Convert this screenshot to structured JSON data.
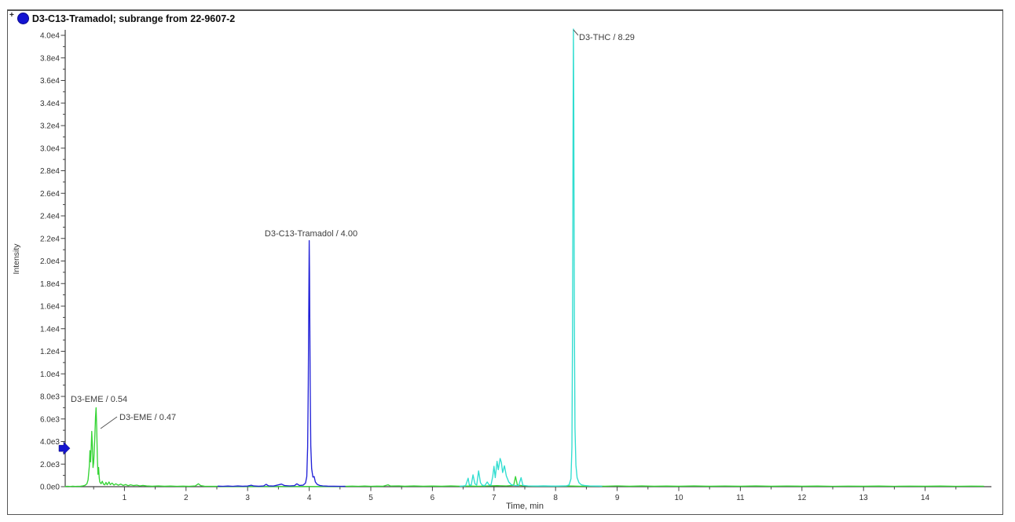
{
  "window": {
    "title_prefix": "+",
    "title": "D3-C13-Tramadol; subrange from 22-9607-2"
  },
  "axes": {
    "x_label": "Time, min",
    "y_label": "Intensity",
    "x_major_ticks": [
      "1",
      "2",
      "3",
      "4",
      "5",
      "6",
      "7",
      "8",
      "9",
      "10",
      "11",
      "12",
      "13",
      "14"
    ],
    "y_major_ticks": [
      "0.0e0",
      "2.0e3",
      "4.0e3",
      "6.0e3",
      "8.0e3",
      "1.0e4",
      "1.2e4",
      "1.4e4",
      "1.6e4",
      "1.8e4",
      "2.0e4",
      "2.2e4",
      "2.4e4",
      "2.6e4",
      "2.8e4",
      "3.0e4",
      "3.2e4",
      "3.4e4",
      "3.6e4",
      "3.8e4",
      "4.0e4"
    ]
  },
  "marker": {
    "name": "axis-cursor-arrow",
    "intensity": 3400,
    "color": "#1616d0"
  },
  "chart_data": {
    "type": "line",
    "title": "D3-C13-Tramadol; subrange from 22-9607-2",
    "xlabel": "Time, min",
    "ylabel": "Intensity",
    "xlim": [
      0,
      15.05
    ],
    "ylim": [
      0,
      40000
    ],
    "grid": false,
    "legend_position": "none",
    "annotations": [
      {
        "text": "D3-EME / 0.54",
        "rt": 0.54,
        "apex_intensity": 7000
      },
      {
        "text": "D3-EME / 0.47",
        "rt": 0.47,
        "apex_intensity": 4900
      },
      {
        "text": "D3-C13-Tramadol / 4.00",
        "rt": 4.0,
        "apex_intensity": 21800
      },
      {
        "text": "D3-THC / 8.29",
        "rt": 8.29,
        "apex_intensity": 40550
      }
    ],
    "series": [
      {
        "name": "D3-EME",
        "color": "#35d435",
        "points": [
          [
            0.04,
            20
          ],
          [
            0.08,
            35
          ],
          [
            0.12,
            15
          ],
          [
            0.16,
            40
          ],
          [
            0.2,
            20
          ],
          [
            0.24,
            35
          ],
          [
            0.28,
            25
          ],
          [
            0.32,
            60
          ],
          [
            0.36,
            120
          ],
          [
            0.39,
            250
          ],
          [
            0.41,
            600
          ],
          [
            0.43,
            1800
          ],
          [
            0.44,
            3200
          ],
          [
            0.45,
            2200
          ],
          [
            0.46,
            3400
          ],
          [
            0.47,
            4900
          ],
          [
            0.48,
            3600
          ],
          [
            0.49,
            1700
          ],
          [
            0.5,
            2100
          ],
          [
            0.51,
            3200
          ],
          [
            0.52,
            4600
          ],
          [
            0.53,
            6200
          ],
          [
            0.54,
            7000
          ],
          [
            0.55,
            5200
          ],
          [
            0.56,
            2600
          ],
          [
            0.57,
            1100
          ],
          [
            0.58,
            1700
          ],
          [
            0.59,
            800
          ],
          [
            0.6,
            420
          ],
          [
            0.62,
            260
          ],
          [
            0.64,
            480
          ],
          [
            0.66,
            220
          ],
          [
            0.68,
            160
          ],
          [
            0.7,
            380
          ],
          [
            0.72,
            170
          ],
          [
            0.75,
            420
          ],
          [
            0.77,
            180
          ],
          [
            0.8,
            320
          ],
          [
            0.83,
            140
          ],
          [
            0.86,
            260
          ],
          [
            0.9,
            130
          ],
          [
            0.94,
            230
          ],
          [
            0.98,
            110
          ],
          [
            1.02,
            190
          ],
          [
            1.06,
            90
          ],
          [
            1.1,
            170
          ],
          [
            1.15,
            100
          ],
          [
            1.2,
            140
          ],
          [
            1.25,
            70
          ],
          [
            1.3,
            110
          ],
          [
            1.36,
            60
          ],
          [
            1.45,
            45
          ],
          [
            1.55,
            60
          ],
          [
            1.65,
            40
          ],
          [
            1.75,
            55
          ],
          [
            1.85,
            35
          ],
          [
            1.95,
            50
          ],
          [
            2.05,
            35
          ],
          [
            2.15,
            60
          ],
          [
            2.2,
            260
          ],
          [
            2.24,
            90
          ],
          [
            2.3,
            45
          ],
          [
            2.4,
            35
          ],
          [
            2.5,
            25
          ],
          [
            2.6,
            15
          ],
          [
            3.5,
            15
          ],
          [
            4.5,
            15
          ],
          [
            4.58,
            35
          ],
          [
            4.7,
            50
          ],
          [
            4.8,
            35
          ],
          [
            4.9,
            55
          ],
          [
            5.0,
            35
          ],
          [
            5.1,
            50
          ],
          [
            5.2,
            40
          ],
          [
            5.28,
            170
          ],
          [
            5.32,
            55
          ],
          [
            5.45,
            70
          ],
          [
            5.55,
            40
          ],
          [
            5.7,
            60
          ],
          [
            5.85,
            40
          ],
          [
            6.0,
            55
          ],
          [
            6.15,
            40
          ],
          [
            6.3,
            60
          ],
          [
            6.45,
            45
          ],
          [
            6.6,
            55
          ],
          [
            6.75,
            45
          ],
          [
            6.9,
            70
          ],
          [
            7.05,
            90
          ],
          [
            7.2,
            70
          ],
          [
            7.32,
            120
          ],
          [
            7.35,
            900
          ],
          [
            7.38,
            130
          ],
          [
            7.5,
            70
          ],
          [
            7.65,
            50
          ],
          [
            7.8,
            65
          ],
          [
            8.0,
            45
          ],
          [
            8.2,
            60
          ],
          [
            8.4,
            45
          ],
          [
            8.6,
            55
          ],
          [
            8.8,
            45
          ],
          [
            9.0,
            70
          ],
          [
            9.2,
            40
          ],
          [
            9.4,
            60
          ],
          [
            9.6,
            40
          ],
          [
            9.8,
            55
          ],
          [
            10.0,
            40
          ],
          [
            10.25,
            60
          ],
          [
            10.5,
            40
          ],
          [
            10.75,
            55
          ],
          [
            11.0,
            40
          ],
          [
            11.25,
            60
          ],
          [
            11.5,
            40
          ],
          [
            11.75,
            55
          ],
          [
            12.0,
            40
          ],
          [
            12.25,
            58
          ],
          [
            12.5,
            38
          ],
          [
            12.75,
            52
          ],
          [
            13.0,
            40
          ],
          [
            13.25,
            55
          ],
          [
            13.5,
            38
          ],
          [
            13.75,
            50
          ],
          [
            14.0,
            40
          ],
          [
            14.25,
            55
          ],
          [
            14.5,
            38
          ],
          [
            14.75,
            48
          ],
          [
            14.95,
            40
          ]
        ]
      },
      {
        "name": "D3-C13-Tramadol",
        "color": "#2222d8",
        "points": [
          [
            2.52,
            50
          ],
          [
            2.6,
            35
          ],
          [
            2.68,
            55
          ],
          [
            2.76,
            35
          ],
          [
            2.84,
            60
          ],
          [
            2.92,
            40
          ],
          [
            3.0,
            55
          ],
          [
            3.06,
            130
          ],
          [
            3.1,
            60
          ],
          [
            3.18,
            45
          ],
          [
            3.26,
            60
          ],
          [
            3.3,
            210
          ],
          [
            3.34,
            80
          ],
          [
            3.42,
            55
          ],
          [
            3.5,
            160
          ],
          [
            3.55,
            230
          ],
          [
            3.6,
            95
          ],
          [
            3.68,
            70
          ],
          [
            3.76,
            90
          ],
          [
            3.8,
            260
          ],
          [
            3.84,
            110
          ],
          [
            3.9,
            130
          ],
          [
            3.94,
            320
          ],
          [
            3.96,
            900
          ],
          [
            3.975,
            3500
          ],
          [
            3.985,
            9000
          ],
          [
            3.995,
            17500
          ],
          [
            4.0,
            21800
          ],
          [
            4.005,
            19000
          ],
          [
            4.015,
            9500
          ],
          [
            4.025,
            3600
          ],
          [
            4.04,
            1600
          ],
          [
            4.06,
            850
          ],
          [
            4.08,
            900
          ],
          [
            4.1,
            420
          ],
          [
            4.13,
            200
          ],
          [
            4.17,
            110
          ],
          [
            4.22,
            70
          ],
          [
            4.3,
            50
          ],
          [
            4.4,
            40
          ],
          [
            4.5,
            35
          ],
          [
            4.58,
            30
          ]
        ]
      },
      {
        "name": "D3-THC",
        "color": "#30ddd0",
        "points": [
          [
            6.45,
            40
          ],
          [
            6.5,
            60
          ],
          [
            6.54,
            90
          ],
          [
            6.58,
            750
          ],
          [
            6.6,
            160
          ],
          [
            6.63,
            120
          ],
          [
            6.66,
            1050
          ],
          [
            6.69,
            260
          ],
          [
            6.72,
            140
          ],
          [
            6.75,
            1400
          ],
          [
            6.78,
            350
          ],
          [
            6.81,
            130
          ],
          [
            6.85,
            90
          ],
          [
            6.89,
            420
          ],
          [
            6.92,
            160
          ],
          [
            6.95,
            130
          ],
          [
            6.98,
            900
          ],
          [
            7.0,
            1800
          ],
          [
            7.02,
            800
          ],
          [
            7.05,
            2250
          ],
          [
            7.07,
            1500
          ],
          [
            7.1,
            2500
          ],
          [
            7.12,
            2150
          ],
          [
            7.14,
            1250
          ],
          [
            7.17,
            1850
          ],
          [
            7.2,
            950
          ],
          [
            7.24,
            420
          ],
          [
            7.28,
            180
          ],
          [
            7.33,
            110
          ],
          [
            7.4,
            90
          ],
          [
            7.44,
            800
          ],
          [
            7.47,
            120
          ],
          [
            7.55,
            70
          ],
          [
            7.7,
            55
          ],
          [
            7.85,
            65
          ],
          [
            8.0,
            50
          ],
          [
            8.1,
            65
          ],
          [
            8.18,
            80
          ],
          [
            8.22,
            160
          ],
          [
            8.25,
            700
          ],
          [
            8.265,
            3500
          ],
          [
            8.275,
            14000
          ],
          [
            8.283,
            30000
          ],
          [
            8.29,
            40550
          ],
          [
            8.296,
            33000
          ],
          [
            8.305,
            15000
          ],
          [
            8.315,
            5200
          ],
          [
            8.33,
            1900
          ],
          [
            8.35,
            800
          ],
          [
            8.38,
            350
          ],
          [
            8.42,
            170
          ],
          [
            8.48,
            100
          ],
          [
            8.55,
            70
          ],
          [
            8.65,
            55
          ],
          [
            8.75,
            45
          ]
        ]
      }
    ]
  }
}
